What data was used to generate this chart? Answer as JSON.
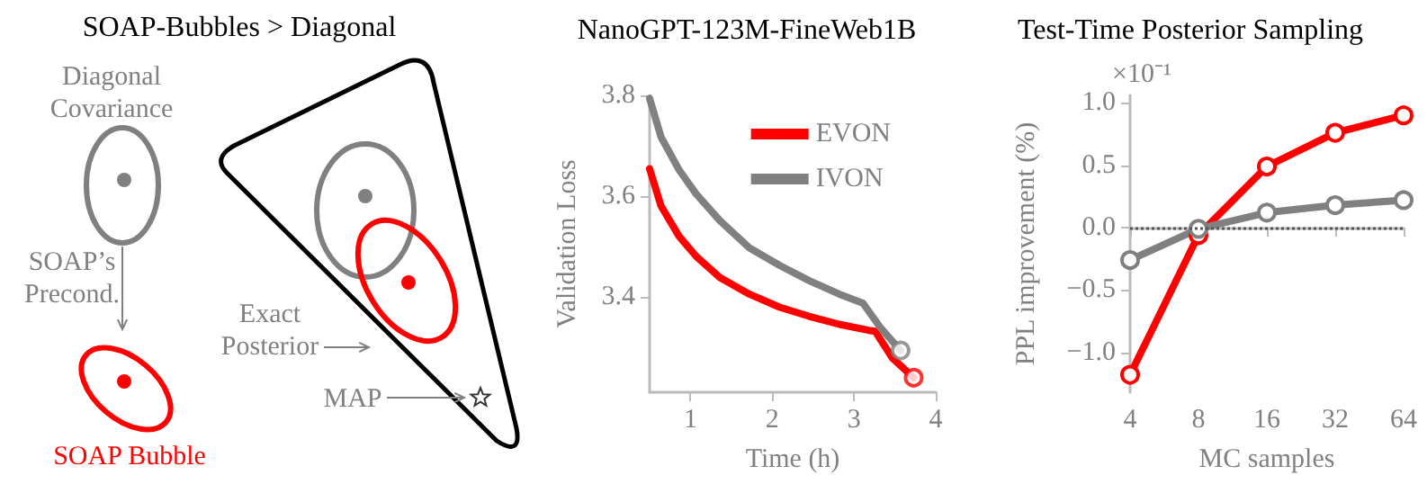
{
  "chart_data": [
    {
      "type": "other",
      "title": "SOAP-Bubbles > Diagonal",
      "annotations": [
        "Diagonal\nCovariance",
        "SOAP’s\nPrecond.",
        "SOAP Bubble",
        "Exact\nPosterior",
        "MAP"
      ]
    },
    {
      "type": "line",
      "title": "NanoGPT-123M-FineWeb1B",
      "xlabel": "Time (h)",
      "ylabel": "Validation Loss",
      "xlim": [
        0.5,
        4
      ],
      "xticks": [
        1,
        2,
        3,
        4
      ],
      "ylim": [
        3.21,
        3.8
      ],
      "yticks": [
        3.4,
        3.6,
        3.8
      ],
      "grid": false,
      "legend": "top right",
      "series": [
        {
          "name": "EVON",
          "color": "#ff0000",
          "x": [
            0.5,
            0.64,
            0.86,
            1.07,
            1.36,
            1.72,
            2.09,
            2.45,
            2.82,
            3.18,
            3.26,
            3.47,
            3.73
          ],
          "values": [
            3.654,
            3.58,
            3.52,
            3.48,
            3.438,
            3.405,
            3.379,
            3.361,
            3.345,
            3.333,
            3.331,
            3.278,
            3.239
          ]
        },
        {
          "name": "IVON",
          "color": "#808080",
          "x": [
            0.5,
            0.64,
            0.86,
            1.07,
            1.36,
            1.72,
            2.09,
            2.45,
            2.82,
            3.11,
            3.33,
            3.57
          ],
          "values": [
            3.794,
            3.717,
            3.652,
            3.604,
            3.551,
            3.497,
            3.462,
            3.432,
            3.405,
            3.387,
            3.337,
            3.293
          ]
        },
        {
          "type": "scatter",
          "color": "#ff0000",
          "x": [
            3.73
          ],
          "values": [
            3.239
          ]
        },
        {
          "type": "scatter",
          "color": "#808080",
          "x": [
            3.57
          ],
          "values": [
            3.293
          ]
        }
      ]
    },
    {
      "type": "line",
      "title": "Test-Time Posterior Sampling",
      "xlabel": "MC samples",
      "ylabel": "PPL improvement (%)",
      "annotations": [
        "×10⁻¹"
      ],
      "categories": [
        "4",
        "8",
        "16",
        "32",
        "64"
      ],
      "ylim": [
        -1.32,
        1.06
      ],
      "yticks": [
        {
          "value": -1,
          "label": "−1.0"
        },
        {
          "value": -0.5,
          "label": "−0.5"
        },
        {
          "value": 0,
          "label": "0.0"
        },
        {
          "value": 0.5,
          "label": "0.5"
        },
        {
          "value": 1,
          "label": "1.0"
        }
      ],
      "grid": false,
      "legend": false,
      "marker": "circle",
      "ref_lines": [
        {
          "axis": "y",
          "value": 0,
          "color": "#555555",
          "line_style": "dotted"
        }
      ],
      "series": [
        {
          "color": "#ff0000",
          "values": [
            -1.18,
            -0.06,
            0.49,
            0.76,
            0.9
          ]
        },
        {
          "color": "#808080",
          "values": [
            -0.26,
            -0.01,
            0.12,
            0.18,
            0.22
          ]
        }
      ]
    }
  ]
}
